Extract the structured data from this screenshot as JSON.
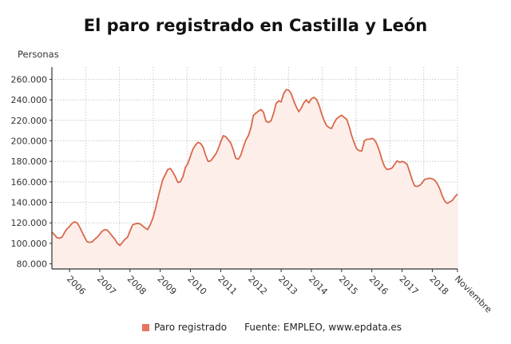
{
  "title": "El paro registrado en Castilla y León",
  "chart_data": {
    "type": "area",
    "title": "El paro registrado en Castilla y León",
    "ylabel": "Personas",
    "xlabel": "",
    "ylim": [
      75000,
      272000
    ],
    "yticks": [
      80000,
      100000,
      120000,
      140000,
      160000,
      180000,
      200000,
      220000,
      240000,
      260000
    ],
    "ytick_labels": [
      "80.000",
      "100.000",
      "120.000",
      "140.000",
      "160.000",
      "180.000",
      "200.000",
      "220.000",
      "240.000",
      "260.000"
    ],
    "xtick_labels": [
      "2006",
      "2007",
      "2008",
      "2009",
      "2010",
      "2011",
      "2012",
      "2013",
      "2014",
      "2015",
      "2016",
      "2017",
      "2018",
      "Noviembre"
    ],
    "xtick_dates": [
      "2006-01",
      "2007-01",
      "2008-01",
      "2009-01",
      "2010-01",
      "2011-01",
      "2012-01",
      "2013-01",
      "2014-01",
      "2015-01",
      "2016-01",
      "2017-01",
      "2018-01",
      "2018-11"
    ],
    "grid": true,
    "legend_placement": "bottom",
    "colors": {
      "line": "#d9684a",
      "fill": "#fdeeea",
      "grid": "#c8c8c8"
    },
    "series": [
      {
        "name": "Paro registrado",
        "x": [
          "2005-06",
          "2005-07",
          "2005-08",
          "2005-09",
          "2005-10",
          "2005-11",
          "2005-12",
          "2006-01",
          "2006-02",
          "2006-03",
          "2006-04",
          "2006-05",
          "2006-06",
          "2006-07",
          "2006-08",
          "2006-09",
          "2006-10",
          "2006-11",
          "2006-12",
          "2007-01",
          "2007-02",
          "2007-03",
          "2007-04",
          "2007-05",
          "2007-06",
          "2007-07",
          "2007-08",
          "2007-09",
          "2007-10",
          "2007-11",
          "2007-12",
          "2008-01",
          "2008-02",
          "2008-03",
          "2008-04",
          "2008-05",
          "2008-06",
          "2008-07",
          "2008-08",
          "2008-09",
          "2008-10",
          "2008-11",
          "2008-12",
          "2009-01",
          "2009-02",
          "2009-03",
          "2009-04",
          "2009-05",
          "2009-06",
          "2009-07",
          "2009-08",
          "2009-09",
          "2009-10",
          "2009-11",
          "2009-12",
          "2010-01",
          "2010-02",
          "2010-03",
          "2010-04",
          "2010-05",
          "2010-06",
          "2010-07",
          "2010-08",
          "2010-09",
          "2010-10",
          "2010-11",
          "2010-12",
          "2011-01",
          "2011-02",
          "2011-03",
          "2011-04",
          "2011-05",
          "2011-06",
          "2011-07",
          "2011-08",
          "2011-09",
          "2011-10",
          "2011-11",
          "2011-12",
          "2012-01",
          "2012-02",
          "2012-03",
          "2012-04",
          "2012-05",
          "2012-06",
          "2012-07",
          "2012-08",
          "2012-09",
          "2012-10",
          "2012-11",
          "2012-12",
          "2013-01",
          "2013-02",
          "2013-03",
          "2013-04",
          "2013-05",
          "2013-06",
          "2013-07",
          "2013-08",
          "2013-09",
          "2013-10",
          "2013-11",
          "2013-12",
          "2014-01",
          "2014-02",
          "2014-03",
          "2014-04",
          "2014-05",
          "2014-06",
          "2014-07",
          "2014-08",
          "2014-09",
          "2014-10",
          "2014-11",
          "2014-12",
          "2015-01",
          "2015-02",
          "2015-03",
          "2015-04",
          "2015-05",
          "2015-06",
          "2015-07",
          "2015-08",
          "2015-09",
          "2015-10",
          "2015-11",
          "2015-12",
          "2016-01",
          "2016-02",
          "2016-03",
          "2016-04",
          "2016-05",
          "2016-06",
          "2016-07",
          "2016-08",
          "2016-09",
          "2016-10",
          "2016-11",
          "2016-12",
          "2017-01",
          "2017-02",
          "2017-03",
          "2017-04",
          "2017-05",
          "2017-06",
          "2017-07",
          "2017-08",
          "2017-09",
          "2017-10",
          "2017-11",
          "2017-12",
          "2018-01",
          "2018-02",
          "2018-03",
          "2018-04",
          "2018-05",
          "2018-06",
          "2018-07",
          "2018-08",
          "2018-09",
          "2018-10",
          "2018-11"
        ],
        "values": [
          111000,
          108500,
          105500,
          105000,
          106000,
          110500,
          114000,
          116500,
          119500,
          121000,
          120000,
          116000,
          111000,
          106000,
          101500,
          101000,
          101500,
          104000,
          106000,
          109000,
          112000,
          113500,
          113000,
          110000,
          107000,
          104000,
          100000,
          98000,
          101000,
          104000,
          106000,
          112000,
          118000,
          119000,
          119500,
          119000,
          117000,
          115000,
          113500,
          118000,
          124000,
          133000,
          143000,
          153000,
          162000,
          167000,
          172000,
          173000,
          169500,
          165000,
          159500,
          160000,
          165000,
          174000,
          178000,
          185000,
          192000,
          196000,
          198500,
          197500,
          194000,
          186000,
          180000,
          180500,
          183500,
          187000,
          192000,
          199000,
          205000,
          204000,
          201000,
          198000,
          191000,
          183000,
          182000,
          186000,
          194000,
          201000,
          205000,
          213000,
          225000,
          227000,
          229000,
          230500,
          228000,
          219000,
          218000,
          219500,
          227000,
          236500,
          239000,
          238000,
          246000,
          250000,
          249500,
          246000,
          239000,
          233000,
          228500,
          232000,
          237000,
          240000,
          237000,
          241000,
          242500,
          240500,
          235000,
          227000,
          220000,
          215000,
          213000,
          212000,
          217500,
          221500,
          223500,
          225000,
          223000,
          221000,
          214000,
          205000,
          198000,
          192000,
          190500,
          190000,
          200000,
          201500,
          201500,
          202500,
          201000,
          197000,
          190000,
          182000,
          175000,
          172000,
          172500,
          173500,
          177000,
          180500,
          179000,
          180000,
          179000,
          177000,
          170000,
          162000,
          156000,
          155500,
          156500,
          159000,
          162500,
          163000,
          163500,
          163000,
          161500,
          158000,
          153000,
          146000,
          141000,
          139000,
          140500,
          142000,
          145500,
          148000
        ]
      }
    ]
  },
  "legend": {
    "items": [
      {
        "label": "Paro registrado",
        "color": "#e8735a"
      }
    ]
  },
  "source": "Fuente: EMPLEO, www.epdata.es"
}
